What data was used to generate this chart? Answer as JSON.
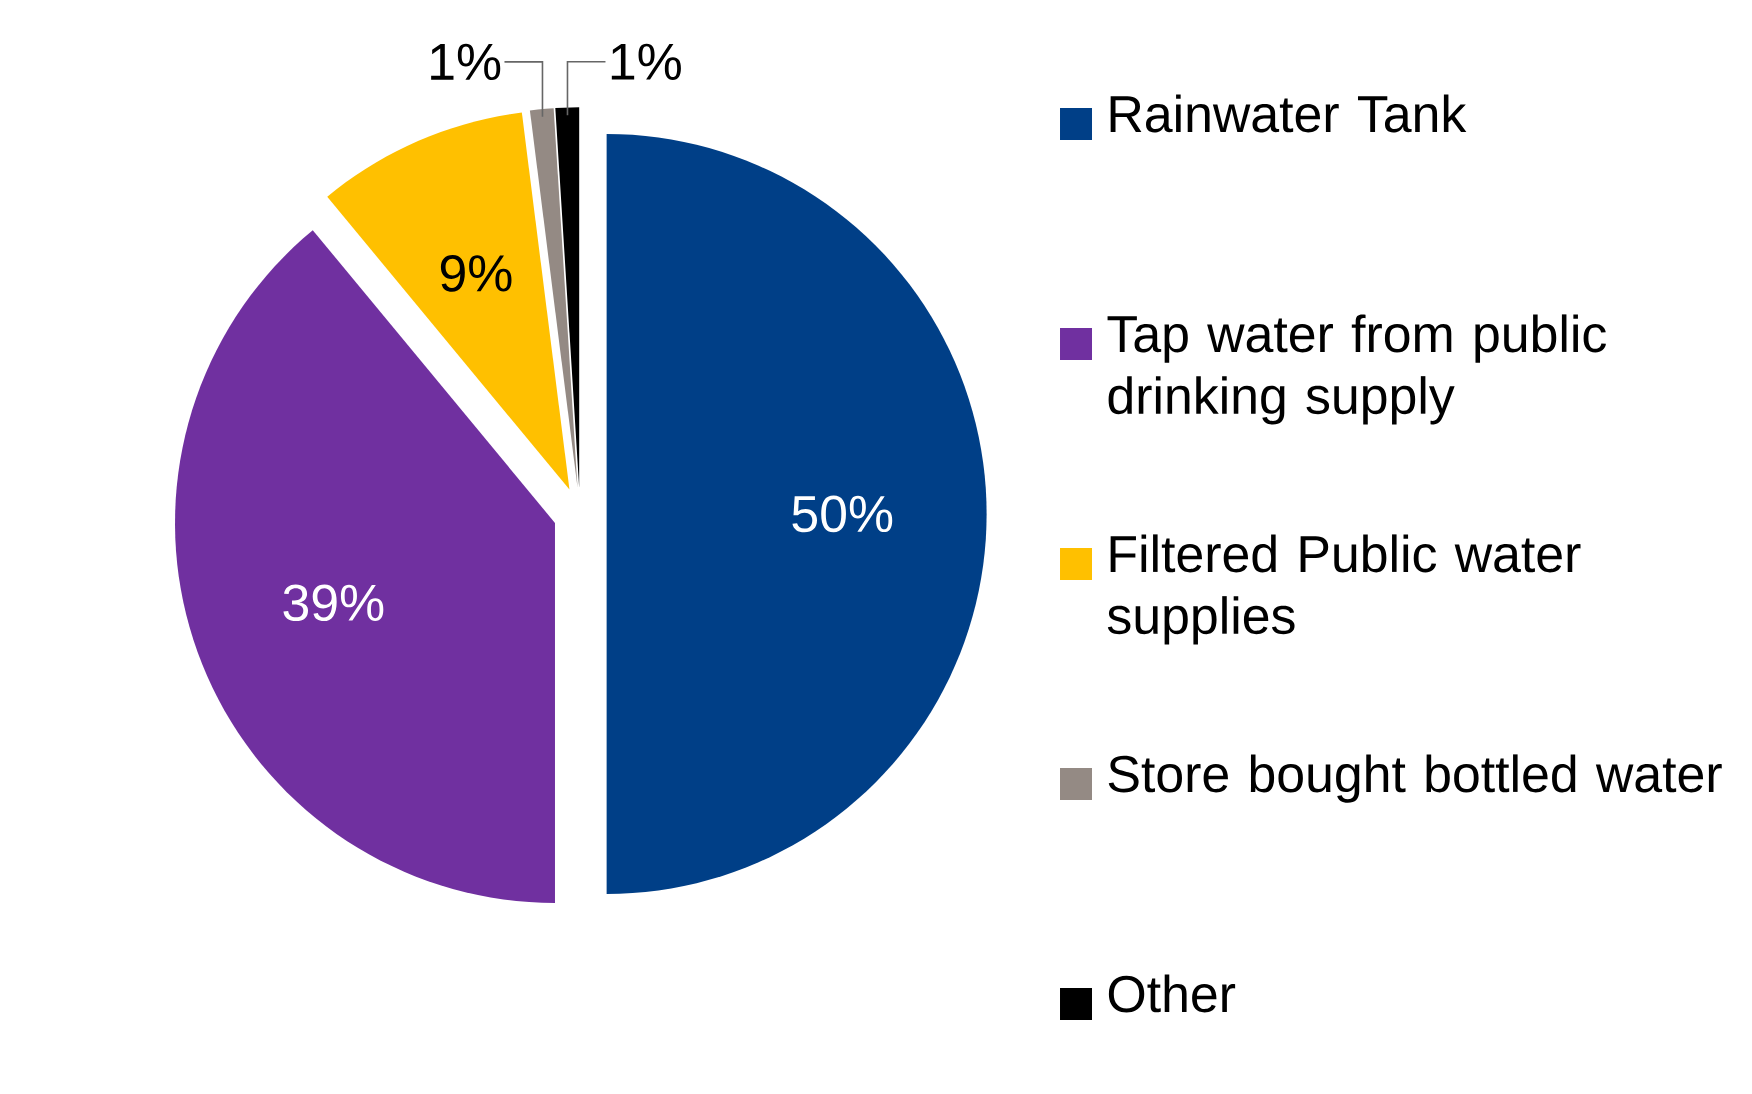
{
  "chart_data": {
    "type": "pie",
    "categories": [
      "Rainwater Tank",
      "Tap water from public drinking supply",
      "Filtered Public water supplies",
      "Store bought bottled water",
      "Other"
    ],
    "values": [
      50,
      39,
      9,
      1,
      1
    ],
    "colors": [
      "#003f87",
      "#7030a0",
      "#ffc000",
      "#948a84",
      "#000000"
    ],
    "value_labels": [
      "50%",
      "39%",
      "9%",
      "1%",
      "1%"
    ],
    "legend": "right"
  }
}
